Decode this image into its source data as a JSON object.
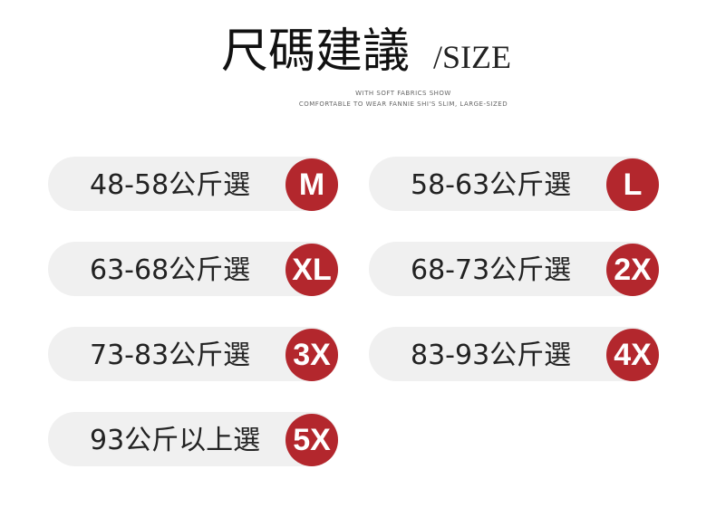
{
  "header": {
    "title": "尺碼建議",
    "title_en": "/SIZE",
    "subtitle_1": "WITH SOFT FABRICS SHOW",
    "subtitle_2": "COMFORTABLE TO WEAR FANNIE SHI'S SLIM, LARGE-SIZED"
  },
  "sizes": [
    {
      "range": "48-58公斤選",
      "size": "M"
    },
    {
      "range": "58-63公斤選",
      "size": "L"
    },
    {
      "range": "63-68公斤選",
      "size": "XL"
    },
    {
      "range": "68-73公斤選",
      "size": "2X"
    },
    {
      "range": "73-83公斤選",
      "size": "3X"
    },
    {
      "range": "83-93公斤選",
      "size": "4X"
    },
    {
      "range": "93公斤以上選",
      "size": "5X"
    }
  ]
}
